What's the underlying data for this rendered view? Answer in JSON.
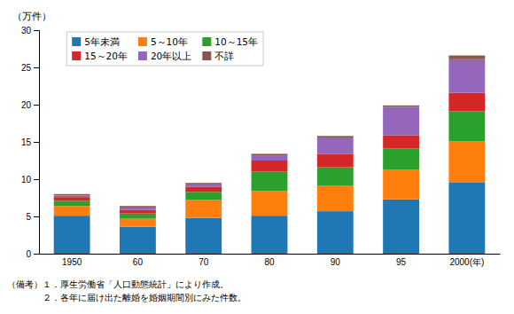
{
  "chart_data": {
    "type": "bar",
    "stacked": true,
    "ylabel": "（万件）",
    "categories": [
      "1950",
      "60",
      "70",
      "80",
      "90",
      "95",
      "2000(年)"
    ],
    "series": [
      {
        "name": "5年未満",
        "values": [
          5.1,
          3.6,
          4.8,
          5.1,
          5.7,
          7.3,
          9.6
        ]
      },
      {
        "name": "5～10年",
        "values": [
          1.3,
          1.1,
          2.4,
          3.3,
          3.4,
          4.0,
          5.5
        ]
      },
      {
        "name": "10～15年",
        "values": [
          0.7,
          0.7,
          1.1,
          2.6,
          2.5,
          2.8,
          4.0
        ]
      },
      {
        "name": "15～20年",
        "values": [
          0.5,
          0.5,
          0.7,
          1.5,
          1.8,
          1.8,
          2.5
        ]
      },
      {
        "name": "20年以上",
        "values": [
          0.2,
          0.3,
          0.3,
          0.7,
          2.2,
          3.8,
          4.5
        ]
      },
      {
        "name": "不詳",
        "values": [
          0.2,
          0.2,
          0.2,
          0.2,
          0.2,
          0.2,
          0.5
        ]
      }
    ],
    "ylim": [
      0,
      30
    ],
    "yticks": [
      0,
      5,
      10,
      15,
      20,
      25,
      30
    ],
    "grid": false,
    "legend": "top-left",
    "annotations": [
      "（備考）１．厚生労働省「人口動態統計」により作成。",
      "　　　　２．各年に届け出た離婚を婚姻期間別にみた件数。"
    ]
  }
}
